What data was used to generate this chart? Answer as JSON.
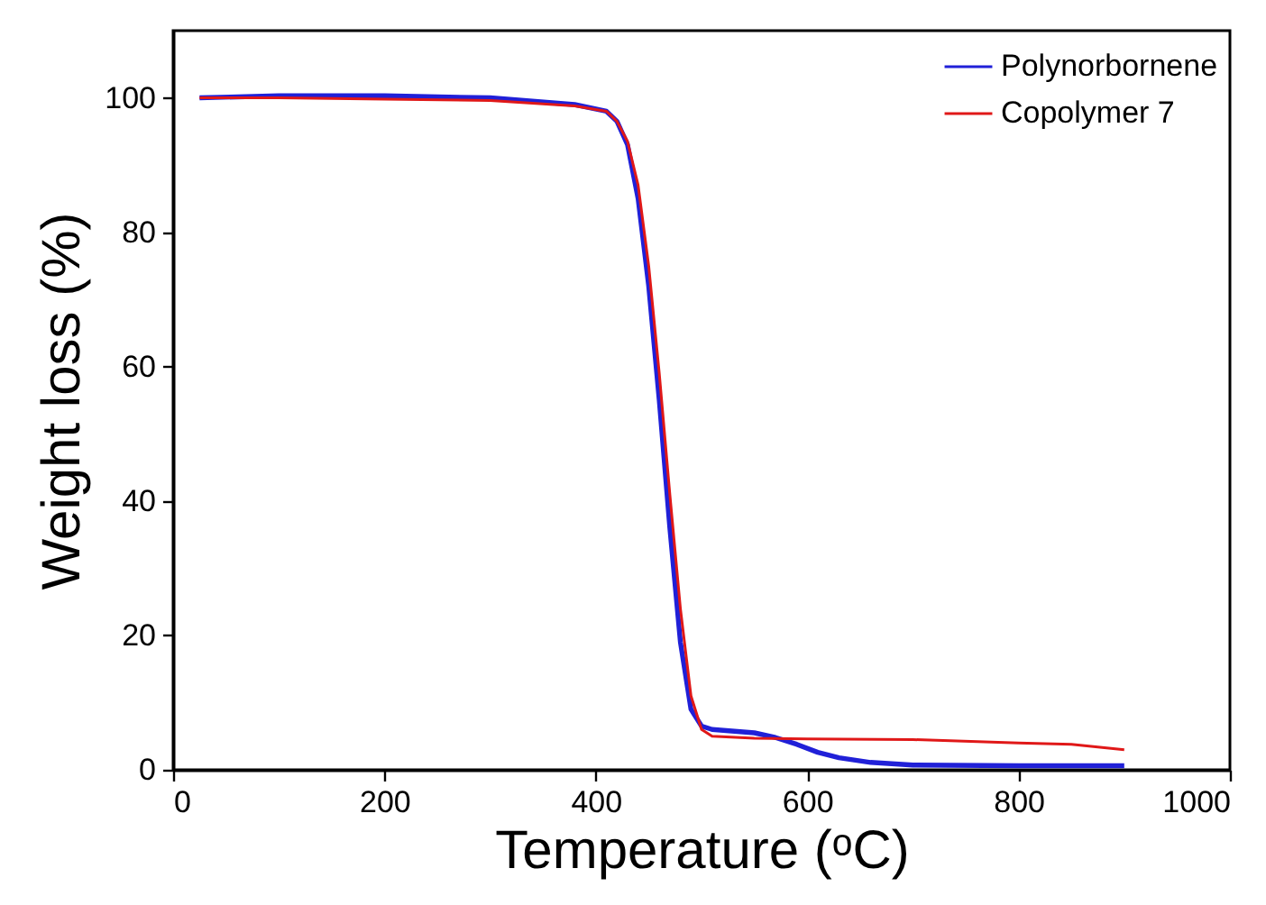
{
  "chart_data": {
    "type": "line",
    "xlabel": "Temperature (ᵒC)",
    "ylabel": "Weight loss (%)",
    "xlim": [
      0,
      1000
    ],
    "xticks": [
      0,
      200,
      400,
      600,
      800,
      1000
    ],
    "ylim": [
      0,
      110
    ],
    "yticks": [
      0,
      20,
      40,
      60,
      80,
      100
    ],
    "grid": false,
    "legend": "top right",
    "marker": "none",
    "line_style": "solid",
    "series": [
      {
        "name": "Polynorbornene",
        "color": "#2020d8",
        "x": [
          25,
          100,
          200,
          300,
          380,
          410,
          420,
          430,
          440,
          450,
          460,
          470,
          480,
          490,
          500,
          510,
          550,
          570,
          590,
          610,
          630,
          660,
          700,
          800,
          900
        ],
        "values": [
          100,
          100.3,
          100.3,
          100,
          99,
          98,
          96.5,
          93,
          85,
          72,
          55,
          36,
          19,
          9,
          6.5,
          6,
          5.5,
          4.8,
          3.8,
          2.6,
          1.8,
          1.1,
          0.7,
          0.6,
          0.6
        ]
      },
      {
        "name": "Copolymer 7",
        "color": "#e01818",
        "x": [
          25,
          100,
          200,
          300,
          380,
          410,
          420,
          430,
          440,
          450,
          460,
          470,
          480,
          490,
          500,
          510,
          550,
          600,
          700,
          800,
          850,
          900
        ],
        "values": [
          100,
          100,
          99.8,
          99.6,
          98.8,
          98,
          96.5,
          93.5,
          87,
          75,
          59,
          41,
          24,
          11,
          6,
          5,
          4.7,
          4.6,
          4.5,
          4,
          3.8,
          3
        ]
      }
    ]
  }
}
